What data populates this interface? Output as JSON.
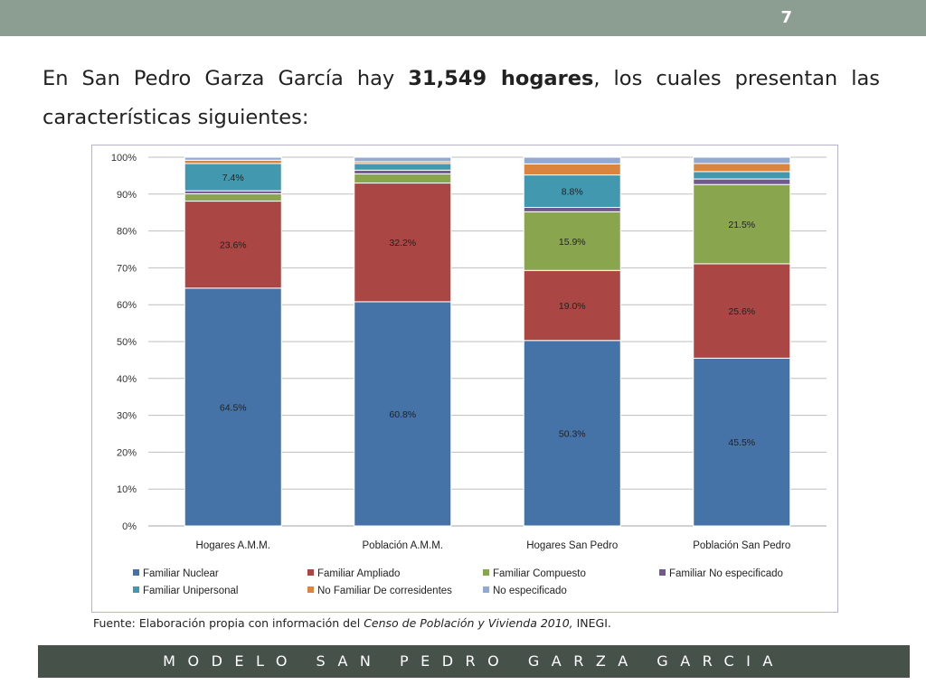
{
  "slide": {
    "number": "7",
    "headline_pre": "En San Pedro Garza García hay ",
    "headline_bold": "31,549 hogares",
    "headline_post": ", los cuales presentan las características siguientes:",
    "source_pre": "Fuente: Elaboración propia con información del ",
    "source_italic": "Censo de Población y Vivienda  2010,",
    "source_post": " INEGI.",
    "footer": "MODELO SAN PEDRO GARZA GARCIA",
    "colors": {
      "top_bar": "#8c9d92",
      "footer_bar": "#46514a"
    }
  },
  "chart_data": {
    "type": "bar",
    "stacked": true,
    "percent_stacked": true,
    "categories": [
      "Hogares A.M.M.",
      "Población A.M.M.",
      "Hogares San Pedro",
      "Población San Pedro"
    ],
    "y_ticks": [
      "0%",
      "10%",
      "20%",
      "30%",
      "40%",
      "50%",
      "60%",
      "70%",
      "80%",
      "90%",
      "100%"
    ],
    "ylim": [
      0,
      100
    ],
    "grid": true,
    "legend_position": "bottom",
    "series": [
      {
        "name": "Familiar Nuclear",
        "color": "#4572a7",
        "values": [
          64.5,
          60.8,
          50.3,
          45.5
        ],
        "labels": [
          "64.5%",
          "60.8%",
          "50.3%",
          "45.5%"
        ]
      },
      {
        "name": "Familiar Ampliado",
        "color": "#aa4643",
        "values": [
          23.6,
          32.2,
          19.0,
          25.6
        ],
        "labels": [
          "23.6%",
          "32.2%",
          "19.0%",
          "25.6%"
        ]
      },
      {
        "name": "Familiar  Compuesto",
        "color": "#89a54e",
        "values": [
          2.0,
          2.5,
          15.9,
          21.5
        ],
        "labels": [
          "",
          "",
          "15.9%",
          "21.5%"
        ]
      },
      {
        "name": "Familiar No especificado",
        "color": "#71588f",
        "values": [
          0.8,
          1.0,
          1.2,
          1.5
        ],
        "labels": [
          "",
          "",
          "",
          ""
        ]
      },
      {
        "name": "Familiar Unipersonal",
        "color": "#4198af",
        "values": [
          7.4,
          1.8,
          8.8,
          2.0
        ],
        "labels": [
          "7.4%",
          "",
          "8.8%",
          ""
        ]
      },
      {
        "name": "No Familiar De corresidentes",
        "color": "#db843d",
        "values": [
          0.9,
          0.5,
          3.0,
          2.2
        ],
        "labels": [
          "",
          "",
          "",
          ""
        ]
      },
      {
        "name": "No especificado",
        "color": "#93a9cf",
        "values": [
          0.8,
          1.2,
          1.8,
          1.7
        ],
        "labels": [
          "",
          "",
          "",
          ""
        ]
      }
    ]
  }
}
